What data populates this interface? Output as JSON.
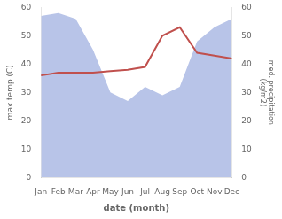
{
  "chart_data": {
    "type": "line",
    "xlabel": "date (month)",
    "ylabel": "max temp (C)",
    "y2label": "med. precipitation\n(kg/m2)",
    "categories": [
      "Jan",
      "Feb",
      "Mar",
      "Apr",
      "May",
      "Jun",
      "Jul",
      "Aug",
      "Sep",
      "Oct",
      "Nov",
      "Dec"
    ],
    "series": [
      {
        "type": "area",
        "axis": "y2",
        "color": "#b8c4e8",
        "values": [
          57,
          58,
          56,
          45,
          30,
          27,
          32,
          29,
          32,
          48,
          53,
          56
        ]
      },
      {
        "type": "line",
        "color": "#c0504d",
        "values": [
          36,
          37,
          37,
          37,
          37.5,
          38,
          39,
          50,
          53,
          44,
          43,
          42
        ]
      }
    ],
    "ylim": [
      0,
      60
    ],
    "yticks": [
      0,
      10,
      20,
      30,
      40,
      50,
      60
    ],
    "y2lim": [
      0,
      60
    ],
    "y2ticks": [
      0,
      10,
      20,
      30,
      40,
      50,
      60
    ],
    "grid": false
  }
}
